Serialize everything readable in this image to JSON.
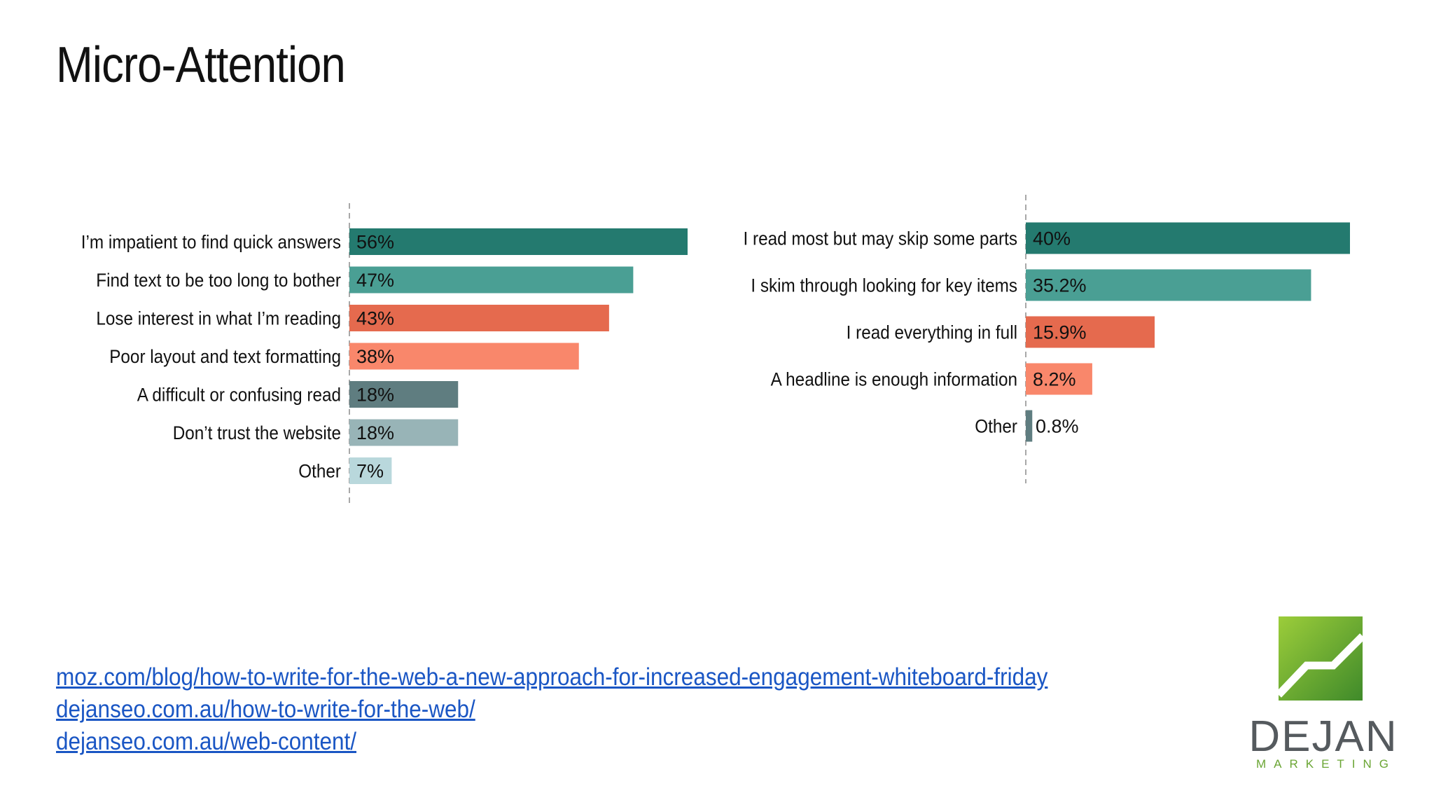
{
  "title": "Micro-Attention",
  "links": [
    "moz.com/blog/how-to-write-for-the-web-a-new-approach-for-increased-engagement-whiteboard-friday",
    "dejanseo.com.au/how-to-write-for-the-web/",
    "dejanseo.com.au/web-content/"
  ],
  "logo": {
    "name": "DEJAN",
    "tagline": "MARKETING",
    "icon": "rising-line-chart-icon",
    "green": "#6aa533"
  },
  "chart_data": [
    {
      "type": "bar",
      "orientation": "horizontal",
      "categories": [
        "I’m impatient to find quick answers",
        "Find text to be too long to bother",
        "Lose interest in what I’m reading",
        "Poor layout and text formatting",
        "A difficult or confusing read",
        "Don’t trust the website",
        "Other"
      ],
      "values": [
        56,
        47,
        43,
        38,
        18,
        18,
        7
      ],
      "value_labels": [
        "56%",
        "47%",
        "43%",
        "38%",
        "18%",
        "18%",
        "7%"
      ],
      "colors": [
        "#247a6f",
        "#4a9f94",
        "#e56a4e",
        "#f9876b",
        "#5f7d80",
        "#98b4b7",
        "#b9d8dc"
      ],
      "xlim": [
        0,
        56
      ],
      "grid": false
    },
    {
      "type": "bar",
      "orientation": "horizontal",
      "categories": [
        "I read most but may skip some parts",
        "I skim through looking for key items",
        "I read everything in full",
        "A headline is enough information",
        "Other"
      ],
      "values": [
        40,
        35.2,
        15.9,
        8.2,
        0.8
      ],
      "value_labels": [
        "40%",
        "35.2%",
        "15.9%",
        "8.2%",
        "0.8%"
      ],
      "colors": [
        "#247a6f",
        "#4a9f94",
        "#e56a4e",
        "#f9876b",
        "#5f7d80"
      ],
      "xlim": [
        0,
        40
      ],
      "grid": false
    }
  ]
}
